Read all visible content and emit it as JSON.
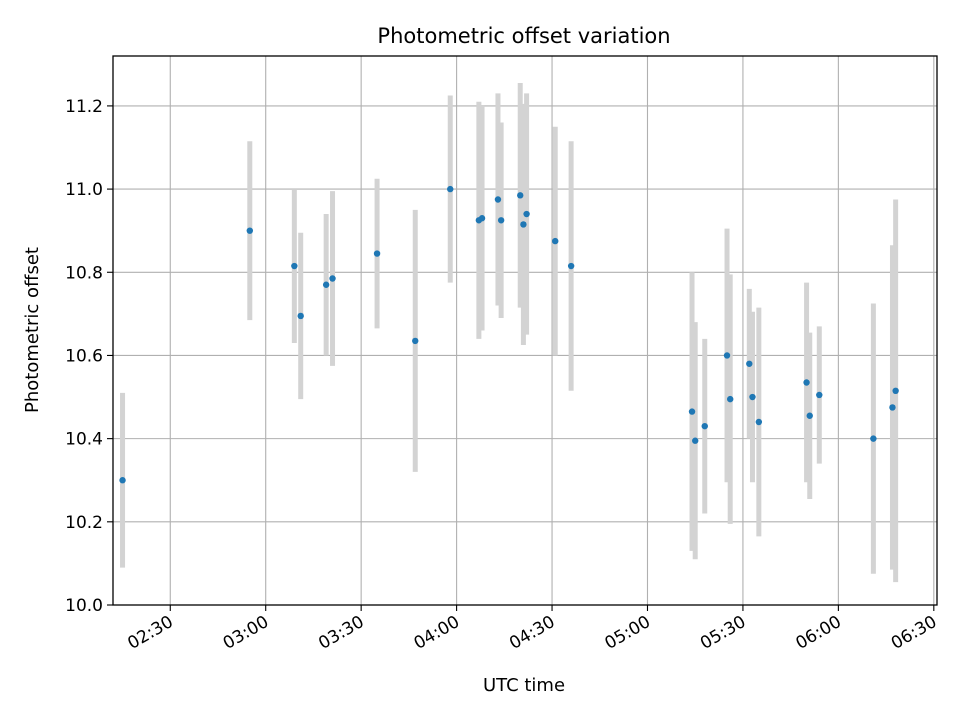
{
  "chart_data": {
    "type": "scatter",
    "title": "Photometric offset variation",
    "xlabel": "UTC time",
    "ylabel": "Photometric offset",
    "x_axis": "time",
    "xlim": [
      "02:12",
      "06:31"
    ],
    "ylim": [
      10.0,
      11.32
    ],
    "x_ticks": [
      "02:30",
      "03:00",
      "03:30",
      "04:00",
      "04:30",
      "05:00",
      "05:30",
      "06:00",
      "06:30"
    ],
    "y_ticks": [
      "10.0",
      "10.2",
      "10.4",
      "10.6",
      "10.8",
      "11.0",
      "11.2"
    ],
    "grid": true,
    "legend": "none",
    "colors": {
      "points": "#1f77b4",
      "errorbars": "#d3d3d3",
      "grid": "#b0b0b0"
    },
    "series": [
      {
        "points": [
          {
            "x": "02:15",
            "y": 10.3,
            "yerr": 0.21
          },
          {
            "x": "02:55",
            "y": 10.9,
            "yerr": 0.215
          },
          {
            "x": "03:09",
            "y": 10.815,
            "yerr": 0.185
          },
          {
            "x": "03:11",
            "y": 10.695,
            "yerr": 0.2
          },
          {
            "x": "03:19",
            "y": 10.77,
            "yerr": 0.17
          },
          {
            "x": "03:21",
            "y": 10.785,
            "yerr": 0.21
          },
          {
            "x": "03:35",
            "y": 10.845,
            "yerr": 0.18
          },
          {
            "x": "03:47",
            "y": 10.635,
            "yerr": 0.315
          },
          {
            "x": "03:58",
            "y": 11.0,
            "yerr": 0.225
          },
          {
            "x": "04:07",
            "y": 10.925,
            "yerr": 0.285
          },
          {
            "x": "04:08",
            "y": 10.93,
            "yerr": 0.27
          },
          {
            "x": "04:13",
            "y": 10.975,
            "yerr": 0.255
          },
          {
            "x": "04:14",
            "y": 10.925,
            "yerr": 0.235
          },
          {
            "x": "04:20",
            "y": 10.985,
            "yerr": 0.27
          },
          {
            "x": "04:21",
            "y": 10.915,
            "yerr": 0.29
          },
          {
            "x": "04:22",
            "y": 10.94,
            "yerr": 0.29
          },
          {
            "x": "04:31",
            "y": 10.875,
            "yerr": 0.275
          },
          {
            "x": "04:36",
            "y": 10.815,
            "yerr": 0.3
          },
          {
            "x": "05:14",
            "y": 10.465,
            "yerr": 0.335
          },
          {
            "x": "05:15",
            "y": 10.395,
            "yerr": 0.285
          },
          {
            "x": "05:18",
            "y": 10.43,
            "yerr": 0.21
          },
          {
            "x": "05:25",
            "y": 10.6,
            "yerr": 0.305
          },
          {
            "x": "05:26",
            "y": 10.495,
            "yerr": 0.3
          },
          {
            "x": "05:32",
            "y": 10.58,
            "yerr": 0.18
          },
          {
            "x": "05:33",
            "y": 10.5,
            "yerr": 0.205
          },
          {
            "x": "05:35",
            "y": 10.44,
            "yerr": 0.275
          },
          {
            "x": "05:50",
            "y": 10.535,
            "yerr": 0.24
          },
          {
            "x": "05:51",
            "y": 10.455,
            "yerr": 0.2
          },
          {
            "x": "05:54",
            "y": 10.505,
            "yerr": 0.165
          },
          {
            "x": "06:11",
            "y": 10.4,
            "yerr": 0.325
          },
          {
            "x": "06:17",
            "y": 10.475,
            "yerr": 0.39
          },
          {
            "x": "06:18",
            "y": 10.515,
            "yerr": 0.46
          }
        ]
      }
    ]
  }
}
